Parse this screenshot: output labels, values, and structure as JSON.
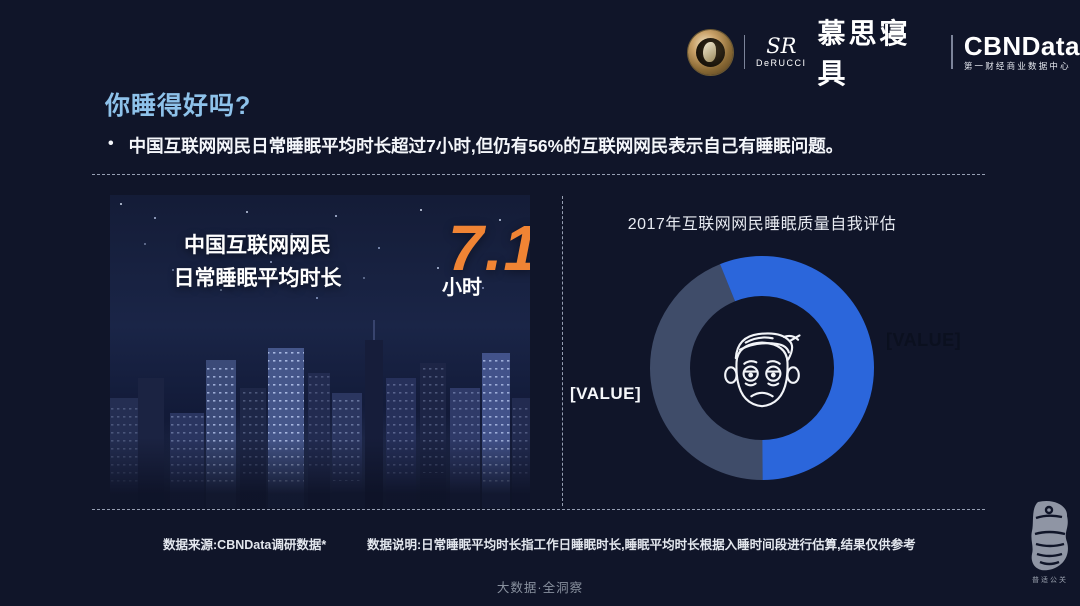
{
  "colors": {
    "background": "#101529",
    "title": "#8ec2ea",
    "accent_orange": "#f08434",
    "donut_blue": "#2b66db",
    "donut_gray": "#3f4c69",
    "dash_line": "#aeb8cc"
  },
  "header": {
    "derucci_script": "SR",
    "derucci_name": "DeRUCCI",
    "derucci_brand": "慕思寝具",
    "cbn_name": "CBNData",
    "cbn_subtitle": "第一财经商业数据中心"
  },
  "title": "你睡得好吗?",
  "bullet_marker": "•",
  "bullet": "中国互联网网民日常睡眠平均时长超过7小时,但仍有56%的互联网网民表示自己有睡眠问题。",
  "left_panel": {
    "line1": "中国互联网网民",
    "line2": "日常睡眠平均时长",
    "value": "7.1",
    "unit": "小时"
  },
  "chart_data": {
    "type": "pie",
    "donut": true,
    "title": "2017年互联网网民睡眠质量自我评估",
    "start_angle_deg": -22,
    "slices": [
      {
        "label": "[VALUE]",
        "value": 56,
        "color": "#2b66db",
        "label_color": "#0b101f",
        "label_side": "right"
      },
      {
        "label": "[VALUE]",
        "value": 44,
        "color": "#3f4c69",
        "label_color": "#f5f7fa",
        "label_side": "left"
      }
    ],
    "center_icon": "sad-tired-face",
    "legend": "none"
  },
  "footer": {
    "source": "数据来源:CBNData调研数据*",
    "note": "数据说明:日常睡眠平均时长指工作日睡眠时长,睡眠平均时长根据入睡时间段进行估算,结果仅供参考",
    "tagline": "大数据·全洞察",
    "agency": "普适公关"
  }
}
